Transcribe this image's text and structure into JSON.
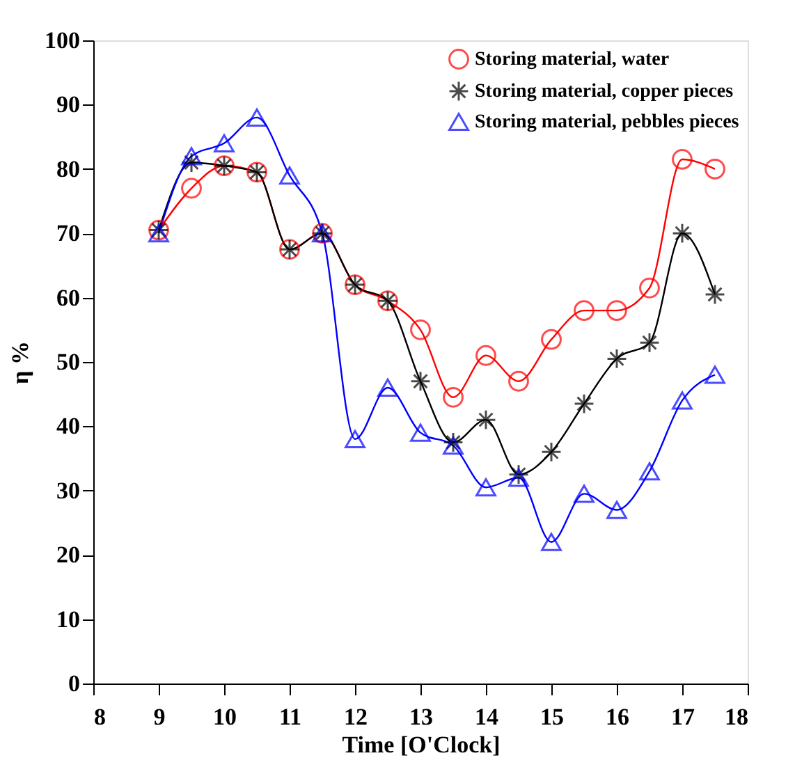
{
  "chart_data": {
    "type": "line",
    "xlabel": "Time [O'Clock]",
    "ylabel": "η %",
    "x": [
      9,
      9.5,
      10,
      10.5,
      11,
      11.5,
      12,
      12.5,
      13,
      13.5,
      14,
      14.5,
      15,
      15.5,
      16,
      16.5,
      17,
      17.5
    ],
    "series": [
      {
        "name": "Storing material, water",
        "color": "#ff0000",
        "marker": "circle",
        "values": [
          70.5,
          77,
          80.5,
          79.5,
          67.5,
          70,
          62,
          59.5,
          55,
          44.5,
          51,
          47,
          53.5,
          58,
          58,
          61.5,
          81.5,
          80
        ]
      },
      {
        "name": "Storing material, copper pieces",
        "color": "#000000",
        "marker": "cross",
        "values": [
          70.5,
          81,
          80.5,
          79.5,
          67.5,
          70,
          62,
          59.5,
          47,
          37.5,
          41,
          32.5,
          36,
          43.5,
          50.5,
          53,
          70,
          60.5
        ]
      },
      {
        "name": "Storing material, pebbles pieces",
        "color": "#0000ff",
        "marker": "triangle",
        "values": [
          70,
          82,
          84,
          88,
          79,
          70,
          38,
          46,
          39,
          37,
          30.5,
          32,
          22,
          29.5,
          27,
          33,
          44,
          48
        ]
      }
    ],
    "xlim": [
      8,
      18
    ],
    "xticks": [
      8,
      9,
      10,
      11,
      12,
      13,
      14,
      15,
      16,
      17,
      18
    ],
    "ylim": [
      0,
      100
    ],
    "yticks": [
      0,
      10,
      20,
      30,
      40,
      50,
      60,
      70,
      80,
      90,
      100
    ],
    "grid": false,
    "legend": "top right",
    "line_style": "solid"
  }
}
